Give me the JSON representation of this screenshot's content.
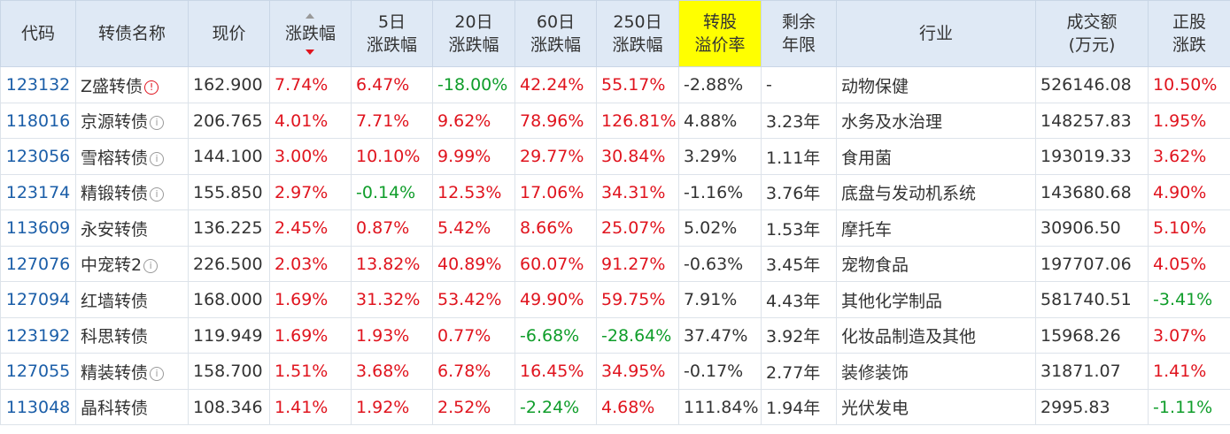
{
  "headers": [
    "代码",
    "转债名称",
    "现价",
    "涨跌幅",
    "5日\n涨跌幅",
    "20日\n涨跌幅",
    "60日\n涨跌幅",
    "250日\n涨跌幅",
    "转股\n溢价率",
    "剩余\n年限",
    "行业",
    "成交额\n(万元)",
    "正股\n涨跌"
  ],
  "colors": {
    "up": "#e0141e",
    "down": "#0f9d2a",
    "highlight_header": "#ffff00",
    "header_bg": "#dfe9f5",
    "code": "#1b5ea8"
  },
  "icons": {
    "sort": "sort-desc-icon",
    "info": "info-circle-icon",
    "warn": "warning-circle-icon"
  },
  "rows": [
    {
      "code": "123132",
      "name": "Z盛转债",
      "icon": "warn",
      "price": "162.900",
      "chg": "7.74%",
      "d5": "6.47%",
      "d20": "-18.00%",
      "d60": "42.24%",
      "d250": "55.17%",
      "premium": "-2.88%",
      "years": "-",
      "industry": "动物保健",
      "volume": "526146.08",
      "stock": "10.50%"
    },
    {
      "code": "118016",
      "name": "京源转债",
      "icon": "info",
      "price": "206.765",
      "chg": "4.01%",
      "d5": "7.71%",
      "d20": "9.62%",
      "d60": "78.96%",
      "d250": "126.81%",
      "premium": "4.88%",
      "years": "3.23年",
      "industry": "水务及水治理",
      "volume": "148257.83",
      "stock": "1.95%"
    },
    {
      "code": "123056",
      "name": "雪榕转债",
      "icon": "info",
      "price": "144.100",
      "chg": "3.00%",
      "d5": "10.10%",
      "d20": "9.99%",
      "d60": "29.77%",
      "d250": "30.84%",
      "premium": "3.29%",
      "years": "1.11年",
      "industry": "食用菌",
      "volume": "193019.33",
      "stock": "3.62%"
    },
    {
      "code": "123174",
      "name": "精锻转债",
      "icon": "info",
      "price": "155.850",
      "chg": "2.97%",
      "d5": "-0.14%",
      "d20": "12.53%",
      "d60": "17.06%",
      "d250": "34.31%",
      "premium": "-1.16%",
      "years": "3.76年",
      "industry": "底盘与发动机系统",
      "volume": "143680.68",
      "stock": "4.90%"
    },
    {
      "code": "113609",
      "name": "永安转债",
      "icon": "",
      "price": "136.225",
      "chg": "2.45%",
      "d5": "0.87%",
      "d20": "5.42%",
      "d60": "8.66%",
      "d250": "25.07%",
      "premium": "5.02%",
      "years": "1.53年",
      "industry": "摩托车",
      "volume": "30906.50",
      "stock": "5.10%"
    },
    {
      "code": "127076",
      "name": "中宠转2",
      "icon": "info",
      "price": "226.500",
      "chg": "2.03%",
      "d5": "13.82%",
      "d20": "40.89%",
      "d60": "60.07%",
      "d250": "91.27%",
      "premium": "-0.63%",
      "years": "3.45年",
      "industry": "宠物食品",
      "volume": "197707.06",
      "stock": "4.05%"
    },
    {
      "code": "127094",
      "name": "红墙转债",
      "icon": "",
      "price": "168.000",
      "chg": "1.69%",
      "d5": "31.32%",
      "d20": "53.42%",
      "d60": "49.90%",
      "d250": "59.75%",
      "premium": "7.91%",
      "years": "4.43年",
      "industry": "其他化学制品",
      "volume": "581740.51",
      "stock": "-3.41%"
    },
    {
      "code": "123192",
      "name": "科思转债",
      "icon": "",
      "price": "119.949",
      "chg": "1.69%",
      "d5": "1.93%",
      "d20": "0.77%",
      "d60": "-6.68%",
      "d250": "-28.64%",
      "premium": "37.47%",
      "years": "3.92年",
      "industry": "化妆品制造及其他",
      "volume": "15968.26",
      "stock": "3.07%"
    },
    {
      "code": "127055",
      "name": "精装转债",
      "icon": "info",
      "price": "158.700",
      "chg": "1.51%",
      "d5": "3.68%",
      "d20": "6.78%",
      "d60": "16.45%",
      "d250": "34.95%",
      "premium": "-0.17%",
      "years": "2.77年",
      "industry": "装修装饰",
      "volume": "31871.07",
      "stock": "1.41%"
    },
    {
      "code": "113048",
      "name": "晶科转债",
      "icon": "",
      "price": "108.346",
      "chg": "1.41%",
      "d5": "1.92%",
      "d20": "2.52%",
      "d60": "-2.24%",
      "d250": "4.68%",
      "premium": "111.84%",
      "years": "1.94年",
      "industry": "光伏发电",
      "volume": "2995.83",
      "stock": "-1.11%"
    }
  ]
}
